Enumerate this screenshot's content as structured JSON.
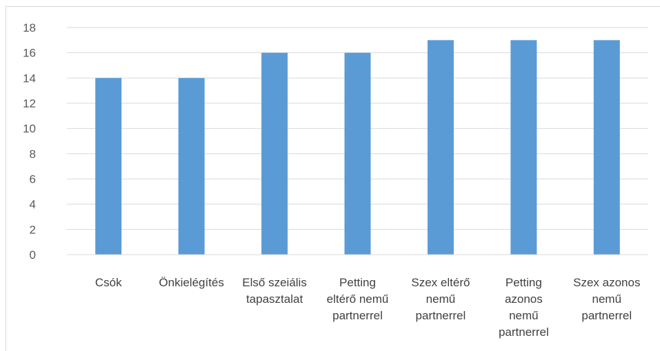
{
  "chart_data": {
    "type": "bar",
    "categories": [
      [
        "Csók"
      ],
      [
        "Önkielégítés"
      ],
      [
        "Első szeiális",
        "tapasztalat"
      ],
      [
        "Petting",
        "eltérő nemű",
        "partnerrel"
      ],
      [
        "Szex eltérő",
        "nemű",
        "partnerrel"
      ],
      [
        "Petting",
        "azonos",
        "nemű",
        "partnerrel"
      ],
      [
        "Szex azonos",
        "nemű",
        "partnerrel"
      ]
    ],
    "values": [
      14,
      14,
      16,
      16,
      17,
      17,
      17
    ],
    "ylim": [
      0,
      18
    ],
    "yticks": [
      "0",
      "2",
      "4",
      "6",
      "8",
      "10",
      "12",
      "14",
      "16",
      "18"
    ],
    "grid": true,
    "bar_color": "#5b9bd5",
    "grid_color": "#d9d9d9"
  }
}
